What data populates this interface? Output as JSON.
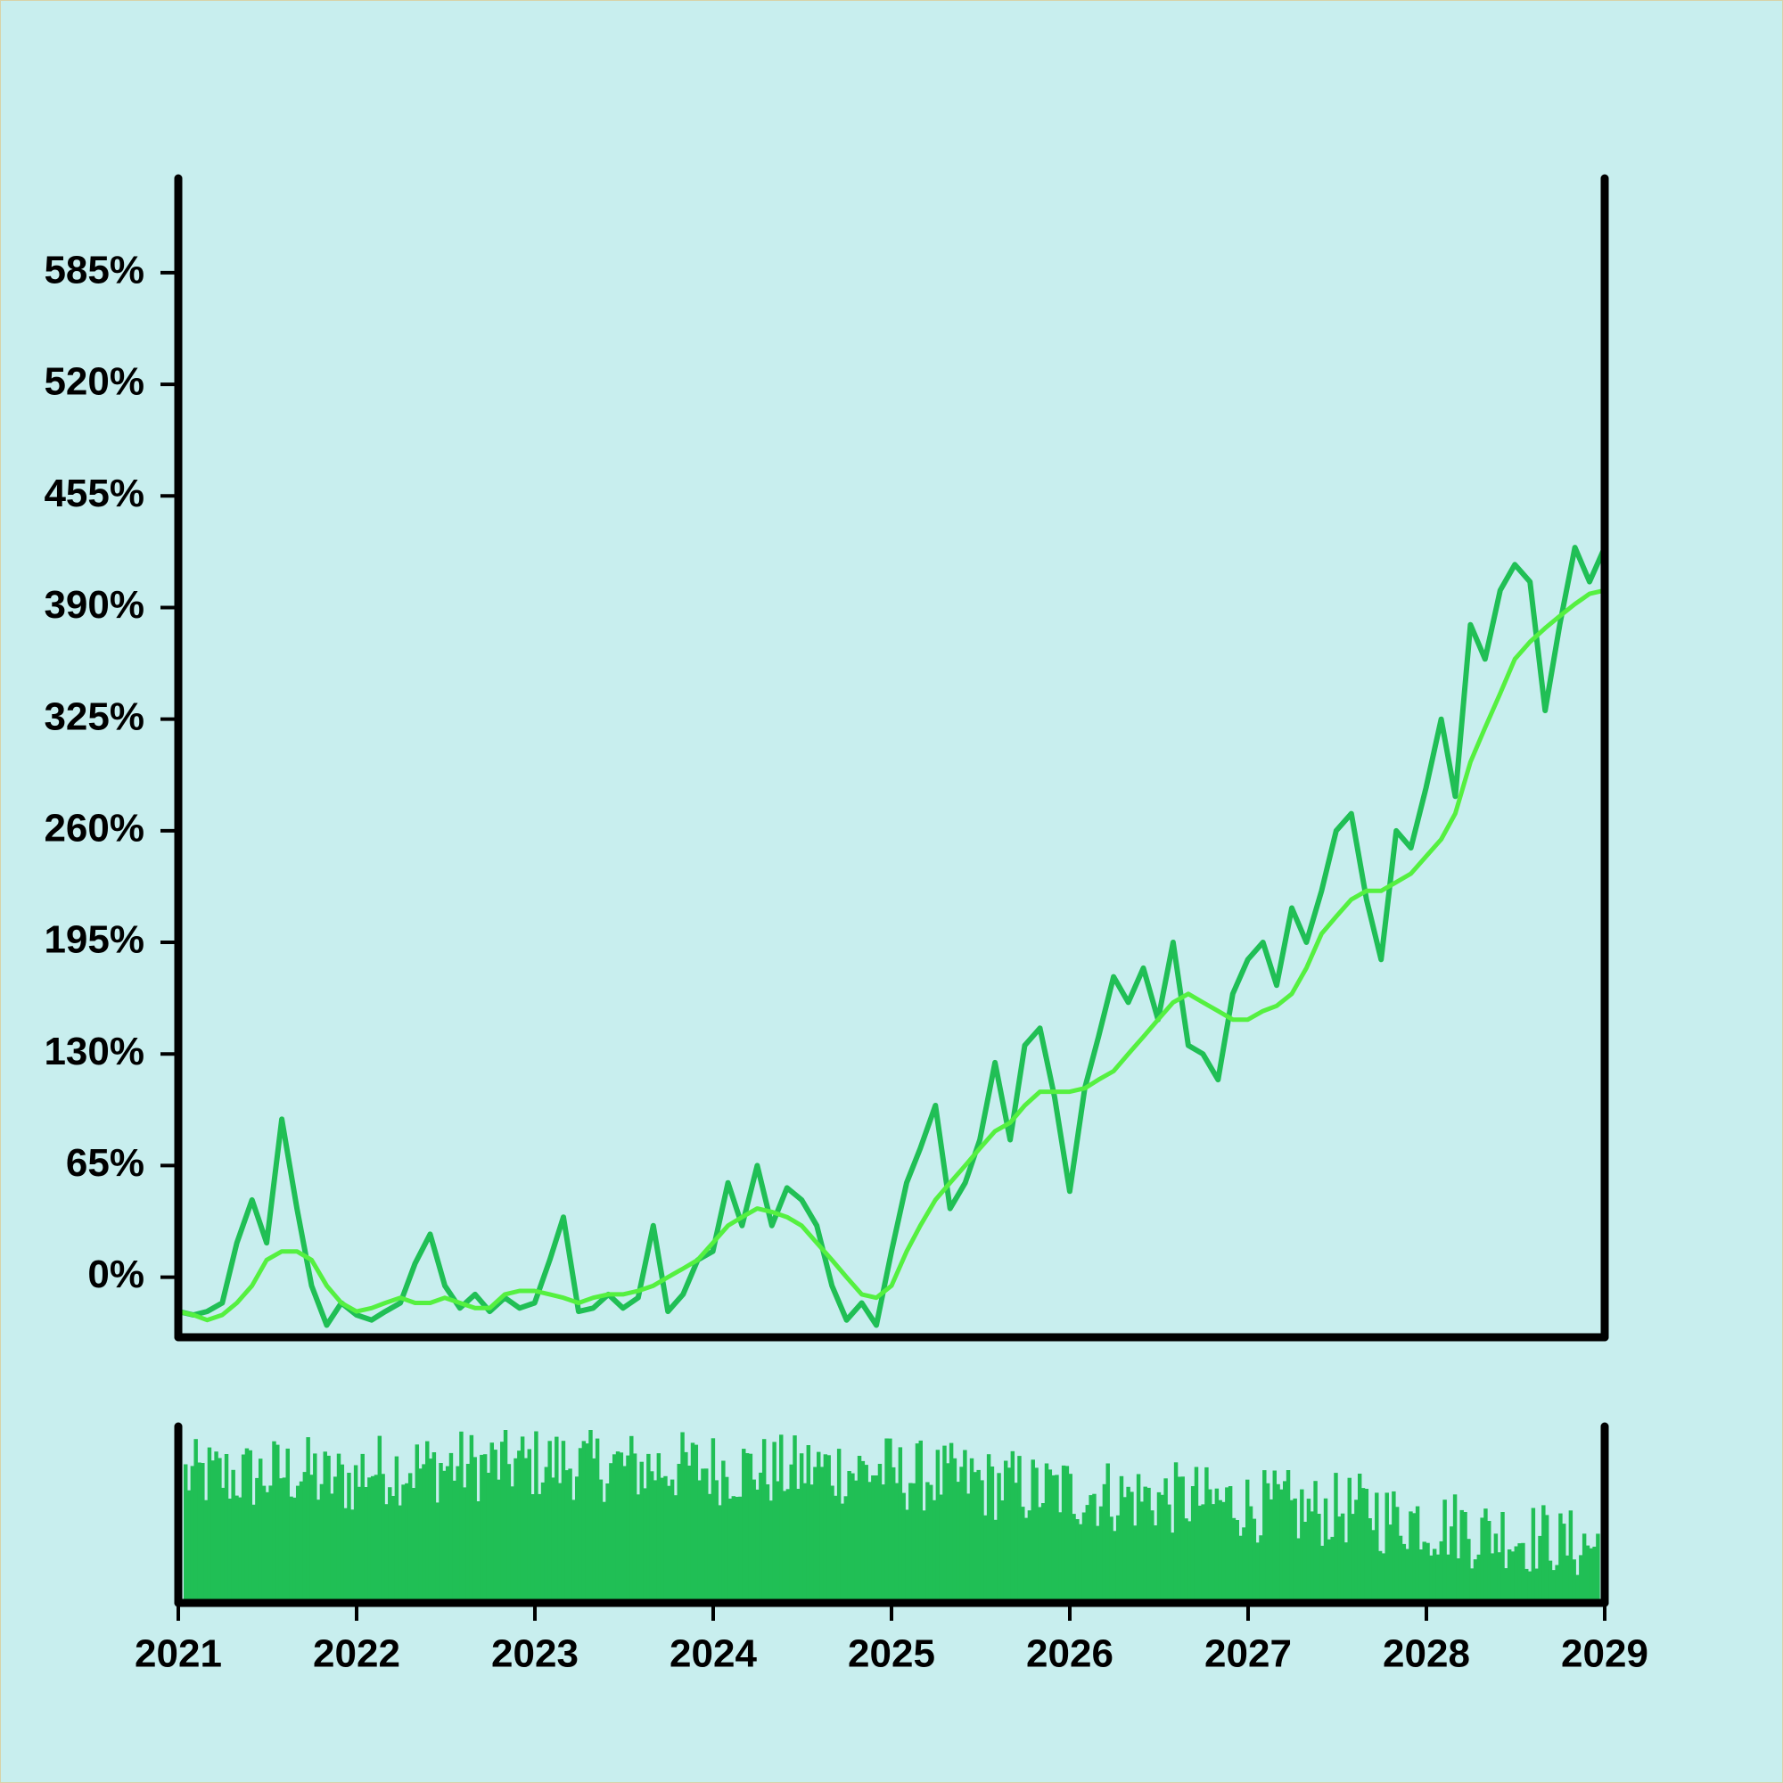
{
  "colors": {
    "background": "#c8eeee",
    "border": "#d8d2a8",
    "axis": "#000000",
    "price_line": "#20bf55",
    "moving_average": "#55f040",
    "volume_bars": "#20bf55"
  },
  "chart_data": [
    {
      "type": "line",
      "panel": "main",
      "x_axis": "dates, 2021 to 2029",
      "xlim": [
        "2021-01-01",
        "2029-01-01"
      ],
      "ylim": [
        -35,
        640
      ],
      "y_ticks": [
        0,
        65,
        130,
        195,
        260,
        325,
        390,
        455,
        520,
        585
      ],
      "y_tick_labels": [
        "0%",
        "65%",
        "130%",
        "195%",
        "260%",
        "325%",
        "390%",
        "455%",
        "520%",
        "585%"
      ],
      "grid": false,
      "series": [
        {
          "role": "price",
          "color": "#20bf55",
          "points": [
            [
              "2021-01-01",
              -20
            ],
            [
              "2021-02-01",
              -22
            ],
            [
              "2021-03-01",
              -20
            ],
            [
              "2021-04-01",
              -15
            ],
            [
              "2021-05-01",
              20
            ],
            [
              "2021-06-01",
              45
            ],
            [
              "2021-07-01",
              20
            ],
            [
              "2021-08-01",
              92
            ],
            [
              "2021-09-01",
              40
            ],
            [
              "2021-10-01",
              -5
            ],
            [
              "2021-11-01",
              -28
            ],
            [
              "2021-12-01",
              -15
            ],
            [
              "2022-01-01",
              -22
            ],
            [
              "2022-02-01",
              -25
            ],
            [
              "2022-03-01",
              -20
            ],
            [
              "2022-04-01",
              -15
            ],
            [
              "2022-05-01",
              8
            ],
            [
              "2022-06-01",
              25
            ],
            [
              "2022-07-01",
              -5
            ],
            [
              "2022-08-01",
              -18
            ],
            [
              "2022-09-01",
              -10
            ],
            [
              "2022-10-01",
              -20
            ],
            [
              "2022-11-01",
              -12
            ],
            [
              "2022-12-01",
              -18
            ],
            [
              "2023-01-01",
              -15
            ],
            [
              "2023-02-01",
              10
            ],
            [
              "2023-03-01",
              35
            ],
            [
              "2023-04-01",
              -20
            ],
            [
              "2023-05-01",
              -18
            ],
            [
              "2023-06-01",
              -10
            ],
            [
              "2023-07-01",
              -18
            ],
            [
              "2023-08-01",
              -12
            ],
            [
              "2023-09-01",
              30
            ],
            [
              "2023-10-01",
              -20
            ],
            [
              "2023-11-01",
              -10
            ],
            [
              "2023-12-01",
              10
            ],
            [
              "2024-01-01",
              15
            ],
            [
              "2024-02-01",
              55
            ],
            [
              "2024-03-01",
              30
            ],
            [
              "2024-04-01",
              65
            ],
            [
              "2024-05-01",
              30
            ],
            [
              "2024-06-01",
              52
            ],
            [
              "2024-07-01",
              45
            ],
            [
              "2024-08-01",
              30
            ],
            [
              "2024-09-01",
              -5
            ],
            [
              "2024-10-01",
              -25
            ],
            [
              "2024-11-01",
              -15
            ],
            [
              "2024-12-01",
              -28
            ],
            [
              "2025-01-01",
              15
            ],
            [
              "2025-02-01",
              55
            ],
            [
              "2025-03-01",
              75
            ],
            [
              "2025-04-01",
              100
            ],
            [
              "2025-05-01",
              40
            ],
            [
              "2025-06-01",
              55
            ],
            [
              "2025-07-01",
              80
            ],
            [
              "2025-08-01",
              125
            ],
            [
              "2025-09-01",
              80
            ],
            [
              "2025-10-01",
              135
            ],
            [
              "2025-11-01",
              145
            ],
            [
              "2025-12-01",
              105
            ],
            [
              "2026-01-01",
              50
            ],
            [
              "2026-02-01",
              110
            ],
            [
              "2026-03-01",
              140
            ],
            [
              "2026-04-01",
              175
            ],
            [
              "2026-05-01",
              160
            ],
            [
              "2026-06-01",
              180
            ],
            [
              "2026-07-01",
              150
            ],
            [
              "2026-08-01",
              195
            ],
            [
              "2026-09-01",
              135
            ],
            [
              "2026-10-01",
              130
            ],
            [
              "2026-11-01",
              115
            ],
            [
              "2026-12-01",
              165
            ],
            [
              "2027-01-01",
              185
            ],
            [
              "2027-02-01",
              195
            ],
            [
              "2027-03-01",
              170
            ],
            [
              "2027-04-01",
              215
            ],
            [
              "2027-05-01",
              195
            ],
            [
              "2027-06-01",
              225
            ],
            [
              "2027-07-01",
              260
            ],
            [
              "2027-08-01",
              270
            ],
            [
              "2027-09-01",
              220
            ],
            [
              "2027-10-01",
              185
            ],
            [
              "2027-11-01",
              260
            ],
            [
              "2027-12-01",
              250
            ],
            [
              "2028-01-01",
              285
            ],
            [
              "2028-02-01",
              325
            ],
            [
              "2028-03-01",
              280
            ],
            [
              "2028-04-01",
              380
            ],
            [
              "2028-05-01",
              360
            ],
            [
              "2028-06-01",
              400
            ],
            [
              "2028-07-01",
              415
            ],
            [
              "2028-08-01",
              405
            ],
            [
              "2028-09-01",
              330
            ],
            [
              "2028-10-01",
              380
            ],
            [
              "2028-11-01",
              425
            ],
            [
              "2028-12-01",
              405
            ],
            [
              "2029-01-01",
              425
            ]
          ]
        },
        {
          "role": "moving-average",
          "color": "#55f040",
          "points": [
            [
              "2021-01-01",
              -20
            ],
            [
              "2021-02-01",
              -22
            ],
            [
              "2021-03-01",
              -25
            ],
            [
              "2021-04-01",
              -22
            ],
            [
              "2021-05-01",
              -15
            ],
            [
              "2021-06-01",
              -5
            ],
            [
              "2021-07-01",
              10
            ],
            [
              "2021-08-01",
              15
            ],
            [
              "2021-09-01",
              15
            ],
            [
              "2021-10-01",
              10
            ],
            [
              "2021-11-01",
              -5
            ],
            [
              "2021-12-01",
              -15
            ],
            [
              "2022-01-01",
              -20
            ],
            [
              "2022-02-01",
              -18
            ],
            [
              "2022-03-01",
              -15
            ],
            [
              "2022-04-01",
              -12
            ],
            [
              "2022-05-01",
              -15
            ],
            [
              "2022-06-01",
              -15
            ],
            [
              "2022-07-01",
              -12
            ],
            [
              "2022-08-01",
              -15
            ],
            [
              "2022-09-01",
              -18
            ],
            [
              "2022-10-01",
              -18
            ],
            [
              "2022-11-01",
              -10
            ],
            [
              "2022-12-01",
              -8
            ],
            [
              "2023-01-01",
              -8
            ],
            [
              "2023-02-01",
              -10
            ],
            [
              "2023-03-01",
              -12
            ],
            [
              "2023-04-01",
              -15
            ],
            [
              "2023-05-01",
              -12
            ],
            [
              "2023-06-01",
              -10
            ],
            [
              "2023-07-01",
              -10
            ],
            [
              "2023-08-01",
              -8
            ],
            [
              "2023-09-01",
              -5
            ],
            [
              "2023-10-01",
              0
            ],
            [
              "2023-11-01",
              5
            ],
            [
              "2023-12-01",
              10
            ],
            [
              "2024-01-01",
              20
            ],
            [
              "2024-02-01",
              30
            ],
            [
              "2024-03-01",
              35
            ],
            [
              "2024-04-01",
              40
            ],
            [
              "2024-05-01",
              38
            ],
            [
              "2024-06-01",
              35
            ],
            [
              "2024-07-01",
              30
            ],
            [
              "2024-08-01",
              20
            ],
            [
              "2024-09-01",
              10
            ],
            [
              "2024-10-01",
              0
            ],
            [
              "2024-11-01",
              -10
            ],
            [
              "2024-12-01",
              -12
            ],
            [
              "2025-01-01",
              -5
            ],
            [
              "2025-02-01",
              15
            ],
            [
              "2025-03-01",
              30
            ],
            [
              "2025-04-01",
              45
            ],
            [
              "2025-05-01",
              55
            ],
            [
              "2025-06-01",
              65
            ],
            [
              "2025-07-01",
              75
            ],
            [
              "2025-08-01",
              85
            ],
            [
              "2025-09-01",
              90
            ],
            [
              "2025-10-01",
              100
            ],
            [
              "2025-11-01",
              108
            ],
            [
              "2025-12-01",
              108
            ],
            [
              "2026-01-01",
              108
            ],
            [
              "2026-02-01",
              110
            ],
            [
              "2026-03-01",
              115
            ],
            [
              "2026-04-01",
              120
            ],
            [
              "2026-05-01",
              130
            ],
            [
              "2026-06-01",
              140
            ],
            [
              "2026-07-01",
              150
            ],
            [
              "2026-08-01",
              160
            ],
            [
              "2026-09-01",
              165
            ],
            [
              "2026-10-01",
              160
            ],
            [
              "2026-11-01",
              155
            ],
            [
              "2026-12-01",
              150
            ],
            [
              "2027-01-01",
              150
            ],
            [
              "2027-02-01",
              155
            ],
            [
              "2027-03-01",
              158
            ],
            [
              "2027-04-01",
              165
            ],
            [
              "2027-05-01",
              180
            ],
            [
              "2027-06-01",
              200
            ],
            [
              "2027-07-01",
              210
            ],
            [
              "2027-08-01",
              220
            ],
            [
              "2027-09-01",
              225
            ],
            [
              "2027-10-01",
              225
            ],
            [
              "2027-11-01",
              230
            ],
            [
              "2027-12-01",
              235
            ],
            [
              "2028-01-01",
              245
            ],
            [
              "2028-02-01",
              255
            ],
            [
              "2028-03-01",
              270
            ],
            [
              "2028-04-01",
              300
            ],
            [
              "2028-05-01",
              320
            ],
            [
              "2028-06-01",
              340
            ],
            [
              "2028-07-01",
              360
            ],
            [
              "2028-08-01",
              370
            ],
            [
              "2028-09-01",
              378
            ],
            [
              "2028-10-01",
              385
            ],
            [
              "2028-11-01",
              392
            ],
            [
              "2028-12-01",
              398
            ],
            [
              "2029-01-01",
              400
            ]
          ]
        }
      ]
    },
    {
      "type": "bar",
      "panel": "volume",
      "x_axis": "dates, 2021 to 2029",
      "xlim": [
        "2021-01-01",
        "2029-01-01"
      ],
      "x_tick_labels": [
        "2021",
        "2022",
        "2023",
        "2024",
        "2025",
        "2026",
        "2027",
        "2028",
        "2029"
      ],
      "y_axis_labels": "none",
      "ylim": [
        0,
        1
      ],
      "grid": false,
      "values_by_quarter": [
        [
          "2021-Q1",
          0.72
        ],
        [
          "2021-Q2",
          0.72
        ],
        [
          "2021-Q3",
          0.74
        ],
        [
          "2021-Q4",
          0.7
        ],
        [
          "2022-Q1",
          0.76
        ],
        [
          "2022-Q2",
          0.77
        ],
        [
          "2022-Q3",
          0.78
        ],
        [
          "2022-Q4",
          0.79
        ],
        [
          "2023-Q1",
          0.79
        ],
        [
          "2023-Q2",
          0.78
        ],
        [
          "2023-Q3",
          0.77
        ],
        [
          "2023-Q4",
          0.77
        ],
        [
          "2024-Q1",
          0.76
        ],
        [
          "2024-Q2",
          0.75
        ],
        [
          "2024-Q3",
          0.76
        ],
        [
          "2024-Q4",
          0.75
        ],
        [
          "2025-Q1",
          0.72
        ],
        [
          "2025-Q2",
          0.7
        ],
        [
          "2025-Q3",
          0.67
        ],
        [
          "2025-Q4",
          0.64
        ],
        [
          "2026-Q1",
          0.62
        ],
        [
          "2026-Q2",
          0.6
        ],
        [
          "2026-Q3",
          0.59
        ],
        [
          "2026-Q4",
          0.57
        ],
        [
          "2027-Q1",
          0.55
        ],
        [
          "2027-Q2",
          0.52
        ],
        [
          "2027-Q3",
          0.53
        ],
        [
          "2027-Q4",
          0.48
        ],
        [
          "2028-Q1",
          0.44
        ],
        [
          "2028-Q2",
          0.4
        ],
        [
          "2028-Q3",
          0.37
        ],
        [
          "2028-Q4",
          0.33
        ]
      ]
    }
  ]
}
